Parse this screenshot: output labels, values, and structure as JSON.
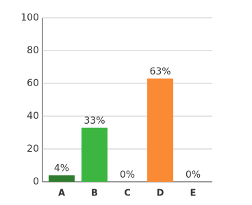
{
  "chart_data": {
    "type": "bar",
    "categories": [
      "A",
      "B",
      "C",
      "D",
      "E"
    ],
    "values": [
      4,
      33,
      0,
      63,
      0
    ],
    "value_labels": [
      "4%",
      "33%",
      "0%",
      "63%",
      "0%"
    ],
    "colors": [
      "#2f7d2f",
      "#3db541",
      null,
      "#fb8a35",
      null
    ],
    "ylim": [
      0,
      100
    ],
    "yticks": [
      0,
      20,
      40,
      60,
      80,
      100
    ],
    "grid": true
  }
}
